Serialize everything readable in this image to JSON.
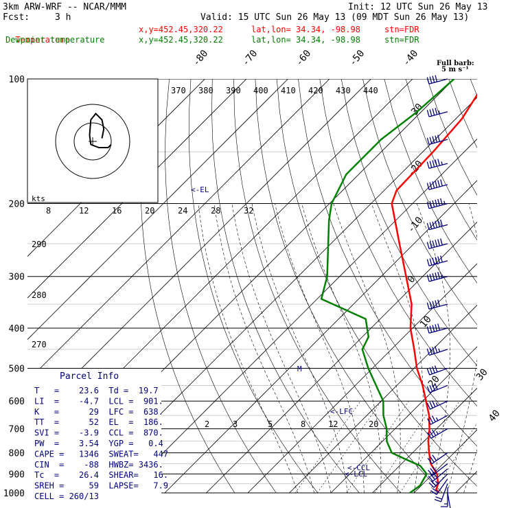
{
  "header": {
    "model_title": "3km ARW-WRF -- NCAR/MMM",
    "init": "Init: 12 UTC Sun 26 May 13",
    "fcst_label": "Fcst:",
    "fcst_value": "3 h",
    "valid": "Valid: 15 UTC Sun 26 May 13 (09 MDT Sun 26 May 13)",
    "temp_line": {
      "name": "Temperature",
      "xy": "x,y=452.45,320.22",
      "latlon": "lat,lon= 34.34, -98.98",
      "stn": "stn=FDR",
      "color": "#ff0000"
    },
    "dew_line": {
      "name": "Dewpoint temperature",
      "xy": "x,y=452.45,320.22",
      "latlon": "lat,lon= 34.34, -98.98",
      "stn": "stn=FDR",
      "color": "#008000"
    }
  },
  "barb_legend": {
    "title": "Full barb:",
    "units": "5 m s⁻¹"
  },
  "hodograph": {
    "units_label": "kts"
  },
  "parcel_info": {
    "title": "Parcel Info",
    "rows": [
      "T   =    23.6  Td =  19.7",
      "LI  =    -4.7  LCL =  901.",
      "K   =      29  LFC =  638.",
      "TT  =      52  EL  =  186.",
      "SVI =    -3.9  CCL =  870.",
      "PW  =    3.54  YGP =   0.4",
      "CAPE =   1346  SWEAT=   447",
      "CIN  =    -88  HWBZ= 3436.",
      "Tc  =    26.4  SHEAR=   16.",
      "SREH =     59  LAPSE=   7.9",
      "CELL = 260/13"
    ]
  },
  "chart_data": {
    "type": "line",
    "title": "Skew-T log-p sounding",
    "pressure_levels": [
      "100",
      "200",
      "300",
      "400",
      "500",
      "600",
      "700",
      "800",
      "900",
      "1000"
    ],
    "isotherm_labels": [
      "-80",
      "-70",
      "-60",
      "-50",
      "-40",
      "-30",
      "-20",
      "-10",
      "0",
      "10",
      "20",
      "30",
      "40"
    ],
    "theta_e_labels": [
      "370",
      "380",
      "390",
      "400",
      "410",
      "420",
      "430",
      "440"
    ],
    "mixing_ratio_labels": [
      "2",
      "3",
      "5",
      "8",
      "12",
      "20"
    ],
    "theta_labels": [
      "290",
      "280",
      "270"
    ],
    "wind_speed_labels": [
      "8",
      "12",
      "16",
      "20",
      "24",
      "28",
      "32"
    ],
    "level_markers": [
      "<-EL",
      "<-LFC",
      "<-CCL",
      "<-LCL"
    ],
    "freezing_marker": "M",
    "series": [
      {
        "name": "Temperature",
        "color": "#ff0000",
        "points": [
          [
            1000,
            26.0
          ],
          [
            980,
            24.5
          ],
          [
            950,
            23.6
          ],
          [
            925,
            22.3
          ],
          [
            900,
            21.0
          ],
          [
            850,
            17.0
          ],
          [
            800,
            14.0
          ],
          [
            750,
            11.0
          ],
          [
            700,
            8.3
          ],
          [
            650,
            5.0
          ],
          [
            600,
            0.8
          ],
          [
            550,
            -3.8
          ],
          [
            500,
            -9.3
          ],
          [
            450,
            -14.5
          ],
          [
            400,
            -20.5
          ],
          [
            350,
            -26.0
          ],
          [
            300,
            -34.0
          ],
          [
            250,
            -43.5
          ],
          [
            200,
            -55.0
          ],
          [
            186,
            -57.0
          ],
          [
            150,
            -57.5
          ],
          [
            125,
            -58.5
          ],
          [
            100,
            -62.0
          ]
        ]
      },
      {
        "name": "Dewpoint temperature",
        "color": "#008000",
        "points": [
          [
            1000,
            19.0
          ],
          [
            960,
            19.7
          ],
          [
            900,
            18.5
          ],
          [
            860,
            15.0
          ],
          [
            830,
            10.0
          ],
          [
            800,
            5.0
          ],
          [
            750,
            1.0
          ],
          [
            700,
            -2.0
          ],
          [
            650,
            -6.0
          ],
          [
            600,
            -9.5
          ],
          [
            550,
            -15.0
          ],
          [
            500,
            -21.0
          ],
          [
            450,
            -27.0
          ],
          [
            420,
            -28.5
          ],
          [
            380,
            -33.5
          ],
          [
            340,
            -49.0
          ],
          [
            300,
            -53.0
          ],
          [
            260,
            -59.0
          ],
          [
            220,
            -66.0
          ],
          [
            200,
            -69.5
          ],
          [
            170,
            -73.0
          ],
          [
            140,
            -73.0
          ],
          [
            120,
            -71.0
          ],
          [
            100,
            -70.0
          ]
        ]
      }
    ],
    "winds_kts": [
      [
        1000,
        170,
        10
      ],
      [
        970,
        180,
        15
      ],
      [
        950,
        200,
        18
      ],
      [
        925,
        215,
        22
      ],
      [
        900,
        225,
        25
      ],
      [
        875,
        230,
        28
      ],
      [
        850,
        232,
        30
      ],
      [
        800,
        235,
        30
      ],
      [
        700,
        240,
        34
      ],
      [
        650,
        242,
        34
      ],
      [
        600,
        245,
        36
      ],
      [
        550,
        248,
        38
      ],
      [
        500,
        250,
        40
      ],
      [
        450,
        252,
        45
      ],
      [
        400,
        255,
        48
      ],
      [
        350,
        255,
        50
      ],
      [
        300,
        255,
        55
      ],
      [
        275,
        255,
        58
      ],
      [
        250,
        255,
        60
      ],
      [
        225,
        255,
        62
      ],
      [
        200,
        255,
        65
      ],
      [
        180,
        255,
        60
      ],
      [
        160,
        255,
        55
      ],
      [
        140,
        255,
        50
      ],
      [
        120,
        255,
        45
      ],
      [
        100,
        255,
        40
      ]
    ],
    "hodograph_uv_kts": [
      [
        15,
        -5
      ],
      [
        18,
        -20
      ],
      [
        15,
        -35
      ],
      [
        5,
        -45
      ],
      [
        -3,
        -35
      ],
      [
        -5,
        -10
      ],
      [
        -3,
        5
      ],
      [
        10,
        10
      ],
      [
        25,
        10
      ],
      [
        30,
        5
      ]
    ]
  }
}
